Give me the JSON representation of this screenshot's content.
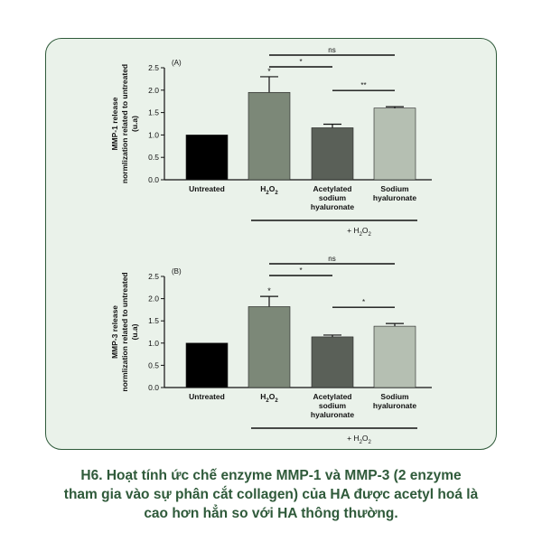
{
  "caption": {
    "line1": "H6. Hoạt tính ức chế enzyme MMP-1 và MMP-3 (2 enzyme",
    "line2": "tham gia vào sự phân cắt collagen) của HA được acetyl hoá là",
    "line3": "cao hơn hẳn so với HA thông thường."
  },
  "colors": {
    "panel_bg": "#eaf2ea",
    "panel_border": "#2f5a3a",
    "caption_text": "#2f5a3a"
  },
  "chart_data": [
    {
      "type": "bar",
      "panel_label": "(A)",
      "ylabel_lines": [
        "MMP-1 release",
        "normlization related to untreated",
        "(u.a)"
      ],
      "ylim": [
        0,
        2.5
      ],
      "yticks": [
        "0.0",
        "0.5",
        "1.0",
        "1.5",
        "2.0",
        "2.5"
      ],
      "categories": [
        [
          "Untreated"
        ],
        [
          "H2O2"
        ],
        [
          "Acetylated",
          "sodium",
          "hyaluronate"
        ],
        [
          "Sodium",
          "hyaluronate"
        ]
      ],
      "values": [
        1.0,
        1.95,
        1.16,
        1.6
      ],
      "errors": [
        0,
        0.35,
        0.08,
        0.03
      ],
      "bar_colors": [
        "#000000",
        "#7c8878",
        "#5a6058",
        "#b5bfb2"
      ],
      "group_label": "+ H2O2",
      "significance": [
        {
          "from": 1,
          "to": 3,
          "label": "ns"
        },
        {
          "from": 1,
          "to": 2,
          "label": "*"
        },
        {
          "from": 2,
          "to": 3,
          "label": "**"
        }
      ],
      "bar_star": "*"
    },
    {
      "type": "bar",
      "panel_label": "(B)",
      "ylabel_lines": [
        "MMP-3 release",
        "normlization related to untreated",
        "(u.a)"
      ],
      "ylim": [
        0,
        2.5
      ],
      "yticks": [
        "0.0",
        "0.5",
        "1.0",
        "1.5",
        "2.0",
        "2.5"
      ],
      "categories": [
        [
          "Untreated"
        ],
        [
          "H2O2"
        ],
        [
          "Acetylated",
          "sodium",
          "hyaluronate"
        ],
        [
          "Sodium",
          "hyaluronate"
        ]
      ],
      "values": [
        1.0,
        1.82,
        1.14,
        1.38
      ],
      "errors": [
        0,
        0.23,
        0.04,
        0.06
      ],
      "bar_colors": [
        "#000000",
        "#7c8878",
        "#5a6058",
        "#b5bfb2"
      ],
      "group_label": "+ H2O2",
      "significance": [
        {
          "from": 1,
          "to": 3,
          "label": "ns"
        },
        {
          "from": 1,
          "to": 2,
          "label": "*"
        },
        {
          "from": 2,
          "to": 3,
          "label": "*"
        }
      ],
      "bar_star": "*"
    }
  ]
}
